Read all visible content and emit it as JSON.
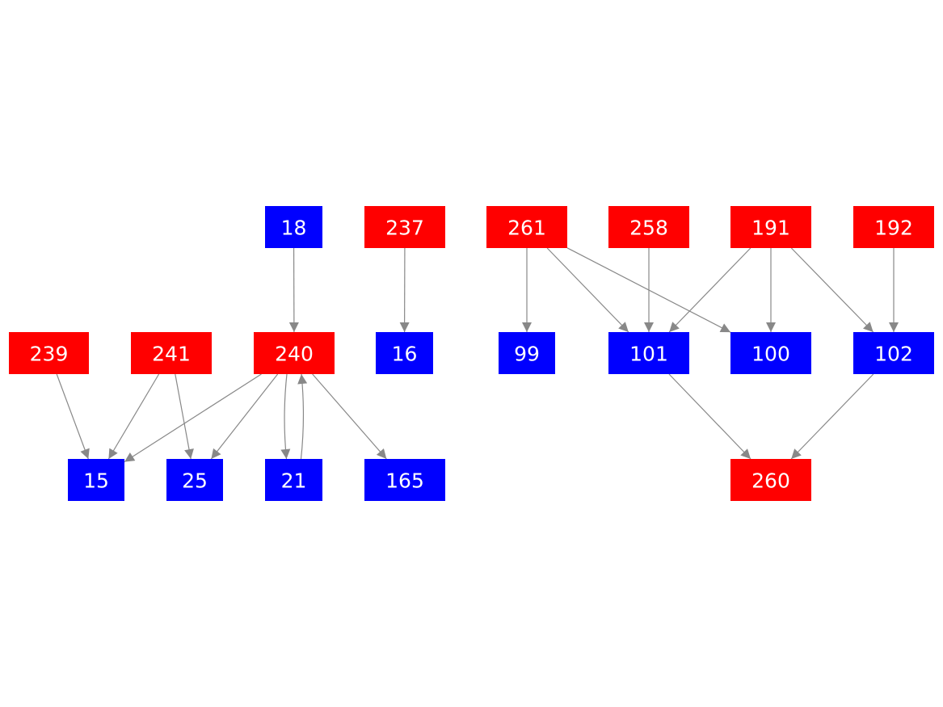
{
  "colors": {
    "red_node": "#ff0000",
    "blue_node": "#0000ff",
    "edge": "#888888",
    "label": "#ffffff"
  },
  "nodes": [
    {
      "id": "18",
      "label": "18",
      "color": "blue"
    },
    {
      "id": "237",
      "label": "237",
      "color": "red"
    },
    {
      "id": "261",
      "label": "261",
      "color": "red"
    },
    {
      "id": "258",
      "label": "258",
      "color": "red"
    },
    {
      "id": "191",
      "label": "191",
      "color": "red"
    },
    {
      "id": "192",
      "label": "192",
      "color": "red"
    },
    {
      "id": "239",
      "label": "239",
      "color": "red"
    },
    {
      "id": "241",
      "label": "241",
      "color": "red"
    },
    {
      "id": "240",
      "label": "240",
      "color": "red"
    },
    {
      "id": "16",
      "label": "16",
      "color": "blue"
    },
    {
      "id": "99",
      "label": "99",
      "color": "blue"
    },
    {
      "id": "101",
      "label": "101",
      "color": "blue"
    },
    {
      "id": "100",
      "label": "100",
      "color": "blue"
    },
    {
      "id": "102",
      "label": "102",
      "color": "blue"
    },
    {
      "id": "15",
      "label": "15",
      "color": "blue"
    },
    {
      "id": "25",
      "label": "25",
      "color": "blue"
    },
    {
      "id": "21",
      "label": "21",
      "color": "blue"
    },
    {
      "id": "165",
      "label": "165",
      "color": "blue"
    },
    {
      "id": "260",
      "label": "260",
      "color": "red"
    }
  ],
  "edges": [
    [
      "18",
      "240"
    ],
    [
      "237",
      "16"
    ],
    [
      "261",
      "99"
    ],
    [
      "261",
      "101"
    ],
    [
      "261",
      "100"
    ],
    [
      "258",
      "101"
    ],
    [
      "191",
      "101"
    ],
    [
      "191",
      "100"
    ],
    [
      "191",
      "102"
    ],
    [
      "192",
      "102"
    ],
    [
      "239",
      "15"
    ],
    [
      "241",
      "15"
    ],
    [
      "241",
      "25"
    ],
    [
      "240",
      "15"
    ],
    [
      "240",
      "25"
    ],
    [
      "240",
      "21"
    ],
    [
      "21",
      "240"
    ],
    [
      "240",
      "165"
    ],
    [
      "101",
      "260"
    ],
    [
      "102",
      "260"
    ]
  ]
}
